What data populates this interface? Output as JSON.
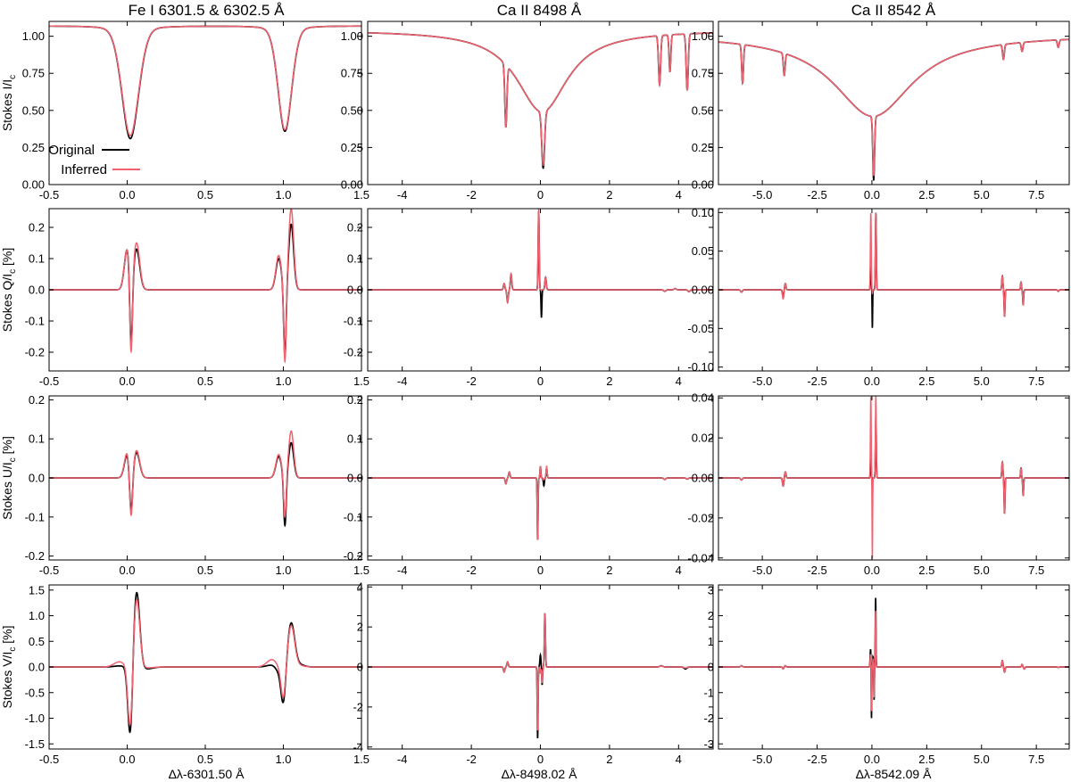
{
  "colors": {
    "original": "#000000",
    "inferred": "#f2616f"
  },
  "column_titles": [
    "Fe I 6301.5 & 6302.5 Å",
    "Ca II 8498 Å",
    "Ca II 8542 Å"
  ],
  "row_ylabels": [
    "Stokes I/I",
    "Stokes Q/I",
    "Stokes U/I",
    "Stokes V/I"
  ],
  "row_ylabel_sub": "c",
  "row_ylabel_suffix": [
    "",
    " [%]",
    " [%]",
    " [%]"
  ],
  "xlabels": [
    "Δλ-6301.50 Å",
    "Δλ-8498.02 Å",
    "Δλ-8542.09 Å"
  ],
  "legend": {
    "original": "Original",
    "inferred": "Inferred"
  },
  "chart_data": [
    {
      "type": "line",
      "row": 0,
      "col": 0,
      "stokes": "I",
      "xlim": [
        -0.5,
        1.5
      ],
      "ylim": [
        0,
        1.1
      ],
      "xticks": [
        -0.5,
        0,
        0.5,
        1,
        1.5
      ],
      "xtick_labels": [
        "-0.5",
        "0.0",
        "0.5",
        "1.0",
        "1.5"
      ],
      "yticks": [
        0,
        0.25,
        0.5,
        0.75,
        1
      ],
      "ytick_labels": [
        "0.00",
        "0.25",
        "0.50",
        "0.75",
        "1.00"
      ],
      "continuum": 1.07,
      "lines": [
        {
          "c": 0.02,
          "orig": -0.76,
          "inf": -0.74,
          "w": 0.055
        },
        {
          "c": 1.01,
          "orig": -0.71,
          "inf": -0.7,
          "w": 0.045
        }
      ],
      "legend": true
    },
    {
      "type": "line",
      "row": 0,
      "col": 1,
      "stokes": "I",
      "xlim": [
        -5,
        5
      ],
      "ylim": [
        0,
        1.1
      ],
      "xticks": [
        -4,
        -2,
        0,
        2,
        4
      ],
      "xtick_labels": [
        "-4",
        "-2",
        "0",
        "2",
        "4"
      ],
      "yticks": [
        0,
        0.25,
        0.5,
        0.75,
        1
      ],
      "ytick_labels": [
        "0.00",
        "0.25",
        "0.50",
        "0.75",
        "1.00"
      ],
      "continuum": 1.04,
      "wing": {
        "c": 0.05,
        "depth": 0.55,
        "w": 0.9
      },
      "core": {
        "c": 0.08,
        "orig": -0.38,
        "inf": -0.36,
        "w": 0.04
      },
      "blends": [
        {
          "c": -1.0,
          "d": -0.42,
          "w": 0.03
        },
        {
          "c": 3.45,
          "d": -0.33,
          "w": 0.03
        },
        {
          "c": 3.75,
          "d": -0.25,
          "w": 0.025
        },
        {
          "c": 4.25,
          "d": -0.38,
          "w": 0.03
        }
      ]
    },
    {
      "type": "line",
      "row": 0,
      "col": 2,
      "stokes": "I",
      "xlim": [
        -7,
        9
      ],
      "ylim": [
        0,
        1.1
      ],
      "xticks": [
        -5,
        -2.5,
        0,
        2.5,
        5,
        7.5
      ],
      "xtick_labels": [
        "-5.0",
        "-2.5",
        "0.0",
        "2.5",
        "5.0",
        "7.5"
      ],
      "yticks": [
        0,
        0.25,
        0.5,
        0.75,
        1
      ],
      "ytick_labels": [
        "0.00",
        "0.25",
        "0.50",
        "0.75",
        "1.00"
      ],
      "continuum": 1.01,
      "wing": {
        "c": 0.05,
        "depth": 0.55,
        "w": 2.2
      },
      "core": {
        "c": 0.08,
        "orig": -0.43,
        "inf": -0.4,
        "w": 0.04
      },
      "blends": [
        {
          "c": -5.9,
          "d": -0.26,
          "w": 0.04
        },
        {
          "c": -4.0,
          "d": -0.15,
          "w": 0.04
        },
        {
          "c": 6.0,
          "d": -0.1,
          "w": 0.04
        },
        {
          "c": 6.85,
          "d": -0.06,
          "w": 0.04
        },
        {
          "c": 8.5,
          "d": -0.05,
          "w": 0.04
        }
      ]
    },
    {
      "type": "line",
      "row": 1,
      "col": 0,
      "stokes": "Q",
      "xlim": [
        -0.5,
        1.5
      ],
      "ylim": [
        -0.26,
        0.26
      ],
      "xticks": [
        -0.5,
        0,
        0.5,
        1,
        1.5
      ],
      "xtick_labels": [
        "-0.5",
        "0.0",
        "0.5",
        "1.0",
        "1.5"
      ],
      "yticks": [
        -0.2,
        -0.1,
        0,
        0.1,
        0.2
      ],
      "ytick_labels": [
        "-0.2",
        "-0.1",
        "0.0",
        "0.1",
        "0.2"
      ],
      "features": [
        {
          "c": 0.0,
          "o": 0.13,
          "i": 0.13,
          "w": 0.018
        },
        {
          "c": 0.025,
          "o": -0.25,
          "i": -0.28,
          "w": 0.009
        },
        {
          "c": 0.06,
          "o": 0.13,
          "i": 0.15,
          "w": 0.02
        },
        {
          "c": 0.97,
          "o": 0.1,
          "i": 0.11,
          "w": 0.018
        },
        {
          "c": 1.01,
          "o": -0.23,
          "i": -0.25,
          "w": 0.008
        },
        {
          "c": 1.05,
          "o": 0.21,
          "i": 0.26,
          "w": 0.016
        }
      ]
    },
    {
      "type": "line",
      "row": 1,
      "col": 1,
      "stokes": "Q",
      "xlim": [
        -5,
        5
      ],
      "ylim": [
        -0.26,
        0.26
      ],
      "xticks": [
        -4,
        -2,
        0,
        2,
        4
      ],
      "xtick_labels": [
        "-4",
        "-2",
        "0",
        "2",
        "4"
      ],
      "yticks": [
        -0.2,
        -0.1,
        0,
        0.1,
        0.2
      ],
      "ytick_labels": [
        "-0.2",
        "-0.1",
        "0.0",
        "0.1",
        "0.2"
      ],
      "features": [
        {
          "c": -1.05,
          "o": 0.02,
          "i": 0.02,
          "w": 0.02
        },
        {
          "c": -0.95,
          "o": -0.04,
          "i": -0.04,
          "w": 0.02
        },
        {
          "c": -0.85,
          "o": 0.05,
          "i": 0.05,
          "w": 0.02
        },
        {
          "c": -0.05,
          "o": 0.25,
          "i": 0.26,
          "w": 0.015
        },
        {
          "c": 0.03,
          "o": -0.09,
          "i": 0.0,
          "w": 0.012
        },
        {
          "c": 0.15,
          "o": 0.04,
          "i": 0.04,
          "w": 0.02
        },
        {
          "c": 3.6,
          "o": -0.005,
          "i": -0.005,
          "w": 0.03
        },
        {
          "c": 3.9,
          "o": 0.004,
          "i": 0.004,
          "w": 0.03
        },
        {
          "c": 4.3,
          "o": -0.006,
          "i": -0.006,
          "w": 0.03
        }
      ]
    },
    {
      "type": "line",
      "row": 1,
      "col": 2,
      "stokes": "Q",
      "xlim": [
        -7,
        9
      ],
      "ylim": [
        -0.105,
        0.105
      ],
      "xticks": [
        -5,
        -2.5,
        0,
        2.5,
        5,
        7.5
      ],
      "xtick_labels": [
        "-5.0",
        "-2.5",
        "0.0",
        "2.5",
        "5.0",
        "7.5"
      ],
      "yticks": [
        -0.1,
        -0.05,
        0,
        0.05,
        0.1
      ],
      "ytick_labels": [
        "-0.10",
        "-0.05",
        "0.00",
        "0.05",
        "0.10"
      ],
      "features": [
        {
          "c": -5.95,
          "o": -0.003,
          "i": -0.003,
          "w": 0.04
        },
        {
          "c": -4.05,
          "o": -0.01,
          "i": -0.012,
          "w": 0.03
        },
        {
          "c": -3.95,
          "o": 0.008,
          "i": 0.008,
          "w": 0.03
        },
        {
          "c": -0.05,
          "o": 0.035,
          "i": 0.1,
          "w": 0.02
        },
        {
          "c": 0.02,
          "o": -0.05,
          "i": -0.005,
          "w": 0.012
        },
        {
          "c": 0.18,
          "o": 0.1,
          "i": 0.1,
          "w": 0.02
        },
        {
          "c": 5.95,
          "o": 0.018,
          "i": 0.018,
          "w": 0.025
        },
        {
          "c": 6.05,
          "o": -0.035,
          "i": -0.035,
          "w": 0.02
        },
        {
          "c": 6.8,
          "o": 0.01,
          "i": 0.01,
          "w": 0.02
        },
        {
          "c": 6.9,
          "o": -0.02,
          "i": -0.02,
          "w": 0.02
        },
        {
          "c": 8.5,
          "o": -0.002,
          "i": -0.002,
          "w": 0.03
        }
      ]
    },
    {
      "type": "line",
      "row": 2,
      "col": 0,
      "stokes": "U",
      "xlim": [
        -0.5,
        1.5
      ],
      "ylim": [
        -0.21,
        0.21
      ],
      "xticks": [
        -0.5,
        0,
        0.5,
        1,
        1.5
      ],
      "xtick_labels": [
        "-0.5",
        "0.0",
        "0.5",
        "1.0",
        "1.5"
      ],
      "yticks": [
        -0.2,
        -0.1,
        0,
        0.1,
        0.2
      ],
      "ytick_labels": [
        "-0.2",
        "-0.1",
        "0.0",
        "0.1",
        "0.2"
      ],
      "features": [
        {
          "c": 0.0,
          "o": 0.06,
          "i": 0.065,
          "w": 0.018
        },
        {
          "c": 0.025,
          "o": -0.12,
          "i": -0.135,
          "w": 0.01
        },
        {
          "c": 0.06,
          "o": 0.065,
          "i": 0.07,
          "w": 0.02
        },
        {
          "c": 0.97,
          "o": 0.055,
          "i": 0.06,
          "w": 0.018
        },
        {
          "c": 1.01,
          "o": -0.13,
          "i": -0.11,
          "w": 0.008
        },
        {
          "c": 1.05,
          "o": 0.09,
          "i": 0.12,
          "w": 0.016
        }
      ]
    },
    {
      "type": "line",
      "row": 2,
      "col": 1,
      "stokes": "U",
      "xlim": [
        -5,
        5
      ],
      "ylim": [
        -0.21,
        0.21
      ],
      "xticks": [
        -4,
        -2,
        0,
        2,
        4
      ],
      "xtick_labels": [
        "-4",
        "-2",
        "0",
        "2",
        "4"
      ],
      "yticks": [
        -0.2,
        -0.1,
        0,
        0.1,
        0.2
      ],
      "ytick_labels": [
        "-0.2",
        "-0.1",
        "0.0",
        "0.1",
        "0.2"
      ],
      "features": [
        {
          "c": -1.0,
          "o": -0.015,
          "i": -0.015,
          "w": 0.02
        },
        {
          "c": -0.9,
          "o": 0.015,
          "i": 0.015,
          "w": 0.02
        },
        {
          "c": -0.08,
          "o": -0.16,
          "i": -0.16,
          "w": 0.012
        },
        {
          "c": 0.0,
          "o": 0.03,
          "i": 0.03,
          "w": 0.012
        },
        {
          "c": 0.1,
          "o": -0.02,
          "i": -0.005,
          "w": 0.015
        },
        {
          "c": 0.18,
          "o": 0.025,
          "i": 0.03,
          "w": 0.015
        },
        {
          "c": 3.6,
          "o": -0.004,
          "i": -0.004,
          "w": 0.03
        },
        {
          "c": 4.25,
          "o": -0.003,
          "i": -0.003,
          "w": 0.03
        }
      ]
    },
    {
      "type": "line",
      "row": 2,
      "col": 2,
      "stokes": "U",
      "xlim": [
        -7,
        9
      ],
      "ylim": [
        -0.041,
        0.041
      ],
      "xticks": [
        -5,
        -2.5,
        0,
        2.5,
        5,
        7.5
      ],
      "xtick_labels": [
        "-5.0",
        "-2.5",
        "0.0",
        "2.5",
        "5.0",
        "7.5"
      ],
      "yticks": [
        -0.04,
        -0.02,
        0,
        0.02,
        0.04
      ],
      "ytick_labels": [
        "-0.04",
        "-0.02",
        "0.00",
        "0.02",
        "0.04"
      ],
      "features": [
        {
          "c": -5.95,
          "o": -0.001,
          "i": -0.001,
          "w": 0.04
        },
        {
          "c": -4.05,
          "o": -0.004,
          "i": -0.004,
          "w": 0.03
        },
        {
          "c": -3.95,
          "o": 0.003,
          "i": 0.003,
          "w": 0.03
        },
        {
          "c": -0.05,
          "o": 0.012,
          "i": 0.041,
          "w": 0.018
        },
        {
          "c": 0.02,
          "o": -0.004,
          "i": -0.041,
          "w": 0.012
        },
        {
          "c": 0.18,
          "o": 0.03,
          "i": 0.041,
          "w": 0.02
        },
        {
          "c": 5.95,
          "o": 0.008,
          "i": 0.008,
          "w": 0.025
        },
        {
          "c": 6.05,
          "o": -0.018,
          "i": -0.018,
          "w": 0.02
        },
        {
          "c": 6.8,
          "o": 0.005,
          "i": 0.005,
          "w": 0.02
        },
        {
          "c": 6.9,
          "o": -0.009,
          "i": -0.009,
          "w": 0.02
        }
      ]
    },
    {
      "type": "line",
      "row": 3,
      "col": 0,
      "stokes": "V",
      "xlim": [
        -0.5,
        1.5
      ],
      "ylim": [
        -1.6,
        1.6
      ],
      "xticks": [
        -0.5,
        0,
        0.5,
        1,
        1.5
      ],
      "xtick_labels": [
        "-0.5",
        "0.0",
        "0.5",
        "1.0",
        "1.5"
      ],
      "yticks": [
        -1.5,
        -1,
        -0.5,
        0,
        0.5,
        1,
        1.5
      ],
      "ytick_labels": [
        "-1.5",
        "-1.0",
        "-0.5",
        "0.0",
        "0.5",
        "1.0",
        "1.5"
      ],
      "features": [
        {
          "c": -0.05,
          "o": 0.02,
          "i": 0.1,
          "w": 0.035
        },
        {
          "c": 0.02,
          "o": -1.45,
          "i": -1.3,
          "w": 0.015
        },
        {
          "c": 0.06,
          "o": 1.5,
          "i": 1.35,
          "w": 0.02
        },
        {
          "c": 0.12,
          "o": -0.04,
          "i": -0.02,
          "w": 0.04
        },
        {
          "c": 0.93,
          "o": 0.04,
          "i": 0.15,
          "w": 0.035
        },
        {
          "c": 0.97,
          "o": -0.1,
          "i": -0.05,
          "w": 0.02
        },
        {
          "c": 1.0,
          "o": -0.72,
          "i": -0.65,
          "w": 0.015
        },
        {
          "c": 1.05,
          "o": 0.85,
          "i": 0.8,
          "w": 0.022
        },
        {
          "c": 1.1,
          "o": 0.05,
          "i": 0.03,
          "w": 0.03
        }
      ]
    },
    {
      "type": "line",
      "row": 3,
      "col": 1,
      "stokes": "V",
      "xlim": [
        -5,
        5
      ],
      "ylim": [
        -4.1,
        4.1
      ],
      "xticks": [
        -4,
        -2,
        0,
        2,
        4
      ],
      "xtick_labels": [
        "-4",
        "-2",
        "0",
        "2",
        "4"
      ],
      "yticks": [
        -4,
        -2,
        0,
        2,
        4
      ],
      "ytick_labels": [
        "-4",
        "-2",
        "0",
        "2",
        "4"
      ],
      "features": [
        {
          "c": -1.05,
          "o": -0.25,
          "i": -0.25,
          "w": 0.02
        },
        {
          "c": -0.95,
          "o": 0.25,
          "i": 0.25,
          "w": 0.02
        },
        {
          "c": -0.08,
          "o": -3.6,
          "i": -3.2,
          "w": 0.012
        },
        {
          "c": 0.0,
          "o": 0.6,
          "i": -0.3,
          "w": 0.015
        },
        {
          "c": 0.05,
          "o": -0.9,
          "i": -0.8,
          "w": 0.012
        },
        {
          "c": 0.13,
          "o": 2.7,
          "i": 2.7,
          "w": 0.015
        },
        {
          "c": 3.5,
          "o": 0.06,
          "i": 0.05,
          "w": 0.04
        },
        {
          "c": 4.2,
          "o": -0.1,
          "i": -0.05,
          "w": 0.04
        }
      ]
    },
    {
      "type": "line",
      "row": 3,
      "col": 2,
      "stokes": "V",
      "xlim": [
        -7,
        9
      ],
      "ylim": [
        -3.2,
        3.2
      ],
      "xticks": [
        -5,
        -2.5,
        0,
        2.5,
        5,
        7.5
      ],
      "xtick_labels": [
        "-5.0",
        "-2.5",
        "0.0",
        "2.5",
        "5.0",
        "7.5"
      ],
      "yticks": [
        -3,
        -2,
        -1,
        0,
        1,
        2,
        3
      ],
      "ytick_labels": [
        "-3",
        "-2",
        "-1",
        "0",
        "1",
        "2",
        "3"
      ],
      "features": [
        {
          "c": -5.95,
          "o": 0.05,
          "i": 0.05,
          "w": 0.04
        },
        {
          "c": -4.05,
          "o": -0.07,
          "i": -0.07,
          "w": 0.03
        },
        {
          "c": -3.95,
          "o": 0.05,
          "i": 0.05,
          "w": 0.03
        },
        {
          "c": -0.06,
          "o": 0.7,
          "i": 0.5,
          "w": 0.02
        },
        {
          "c": -0.02,
          "o": -2.1,
          "i": -1.8,
          "w": 0.012
        },
        {
          "c": 0.05,
          "o": 0.4,
          "i": 0.3,
          "w": 0.015
        },
        {
          "c": 0.1,
          "o": -1.3,
          "i": -1.2,
          "w": 0.012
        },
        {
          "c": 0.17,
          "o": 2.7,
          "i": 2.2,
          "w": 0.015
        },
        {
          "c": 5.95,
          "o": 0.25,
          "i": 0.25,
          "w": 0.025
        },
        {
          "c": 6.05,
          "o": -0.2,
          "i": -0.2,
          "w": 0.025
        },
        {
          "c": 6.85,
          "o": 0.1,
          "i": 0.1,
          "w": 0.025
        },
        {
          "c": 6.95,
          "o": -0.08,
          "i": -0.08,
          "w": 0.025
        },
        {
          "c": 8.5,
          "o": -0.02,
          "i": -0.02,
          "w": 0.03
        }
      ]
    }
  ]
}
